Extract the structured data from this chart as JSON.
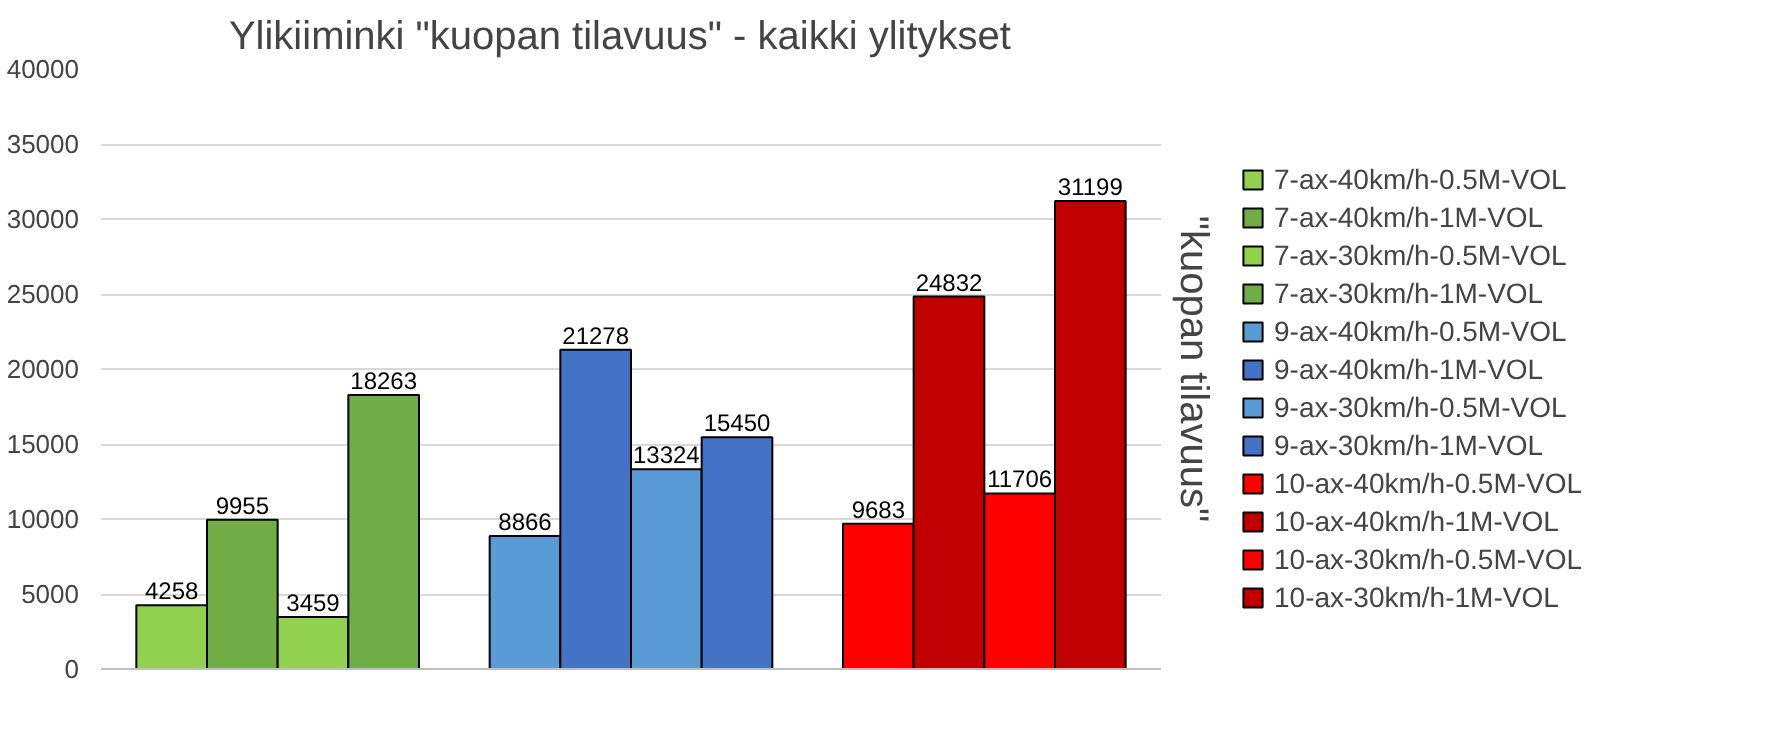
{
  "chart_data": {
    "type": "bar",
    "title": "Ylikiiminki \"kuopan tilavuus\"  -  kaikki ylitykset",
    "ylabel": "\"kuopan tilavuus\"",
    "categories": [
      null,
      null,
      null
    ],
    "series": [
      {
        "name": "7-ax-40km/h-0.5M-VOL",
        "color": "#92d050",
        "values": [
          4258,
          null,
          null
        ]
      },
      {
        "name": "7-ax-40km/h-1M-VOL",
        "color": "#70ad47",
        "values": [
          9955,
          null,
          null
        ]
      },
      {
        "name": "7-ax-30km/h-0.5M-VOL",
        "color": "#92d050",
        "values": [
          3459,
          null,
          null
        ]
      },
      {
        "name": "7-ax-30km/h-1M-VOL",
        "color": "#70ad47",
        "values": [
          18263,
          null,
          null
        ]
      },
      {
        "name": "9-ax-40km/h-0.5M-VOL",
        "color": "#5b9bd5",
        "values": [
          null,
          8866,
          null
        ]
      },
      {
        "name": "9-ax-40km/h-1M-VOL",
        "color": "#4472c4",
        "values": [
          null,
          21278,
          null
        ]
      },
      {
        "name": "9-ax-30km/h-0.5M-VOL",
        "color": "#5b9bd5",
        "values": [
          null,
          13324,
          null
        ]
      },
      {
        "name": "9-ax-30km/h-1M-VOL",
        "color": "#4472c4",
        "values": [
          null,
          15450,
          null
        ]
      },
      {
        "name": "10-ax-40km/h-0.5M-VOL",
        "color": "#ff0000",
        "values": [
          null,
          null,
          9683
        ]
      },
      {
        "name": "10-ax-40km/h-1M-VOL",
        "color": "#c00000",
        "values": [
          null,
          null,
          24832
        ]
      },
      {
        "name": "10-ax-30km/h-0.5M-VOL",
        "color": "#ff0000",
        "values": [
          null,
          null,
          11706
        ]
      },
      {
        "name": "10-ax-30km/h-1M-VOL",
        "color": "#c00000",
        "values": [
          null,
          null,
          31199
        ]
      }
    ],
    "ylim": [
      0,
      40000
    ],
    "yticks": [
      0,
      5000,
      10000,
      15000,
      20000,
      25000,
      30000,
      35000,
      40000
    ],
    "grid": "y",
    "legend": "right",
    "data_labels": true,
    "tick_labels": "y"
  }
}
